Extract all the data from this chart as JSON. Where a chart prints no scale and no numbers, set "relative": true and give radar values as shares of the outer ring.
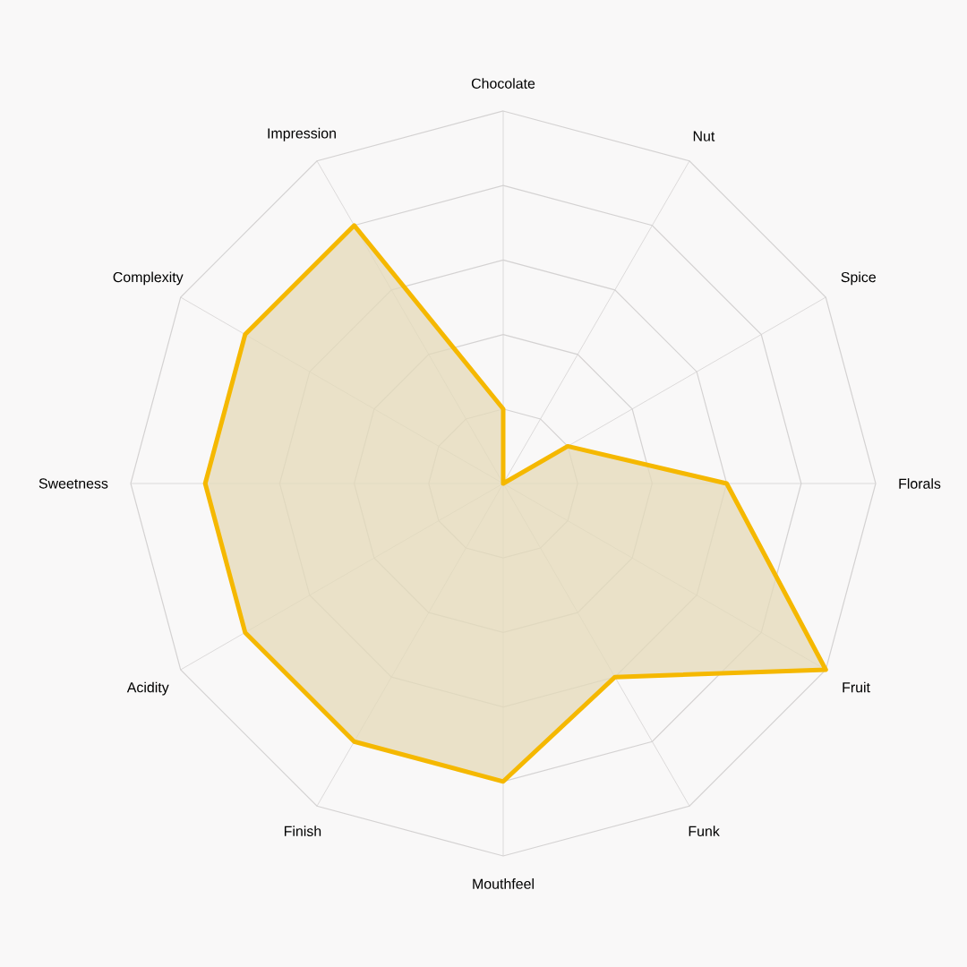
{
  "chart_data": {
    "type": "radar",
    "relative": true,
    "categories": [
      "Chocolate",
      "Nut",
      "Spice",
      "Florals",
      "Fruit",
      "Funk",
      "Mouthfeel",
      "Finish",
      "Acidity",
      "Sweetness",
      "Complexity",
      "Impression"
    ],
    "series": [
      {
        "color": "#f5b800",
        "values": [
          0.2,
          0,
          0.2,
          0.6,
          1.0,
          0.6,
          0.8,
          0.8,
          0.8,
          0.8,
          0.8,
          0.8
        ]
      }
    ]
  }
}
